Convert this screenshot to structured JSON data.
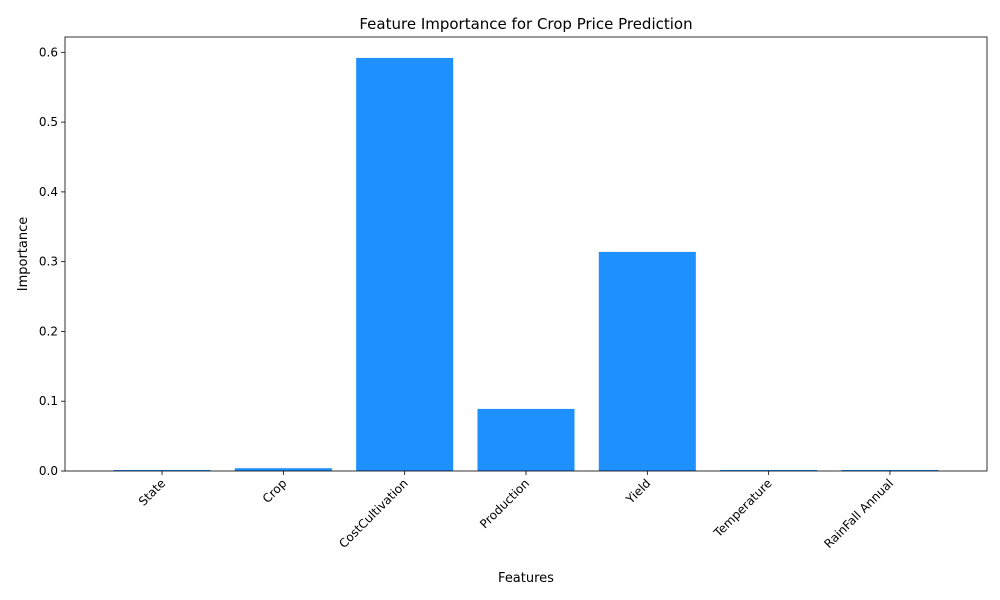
{
  "chart_data": {
    "type": "bar",
    "title": "Feature Importance for Crop Price Prediction",
    "xlabel": "Features",
    "ylabel": "Importance",
    "categories": [
      "State",
      "Crop",
      "CostCultivation",
      "Production",
      "Yield",
      "Temperature",
      "RainFall Annual"
    ],
    "values": [
      0.001,
      0.004,
      0.592,
      0.089,
      0.314,
      0.001,
      0.001
    ],
    "ylim": [
      0,
      0.622
    ],
    "yticks": [
      0.0,
      0.1,
      0.2,
      0.3,
      0.4,
      0.5,
      0.6
    ],
    "ytick_labels": [
      "0.0",
      "0.1",
      "0.2",
      "0.3",
      "0.4",
      "0.5",
      "0.6"
    ],
    "bar_color": "#1e90ff",
    "grid": false,
    "xtick_rotation_deg": 45
  }
}
